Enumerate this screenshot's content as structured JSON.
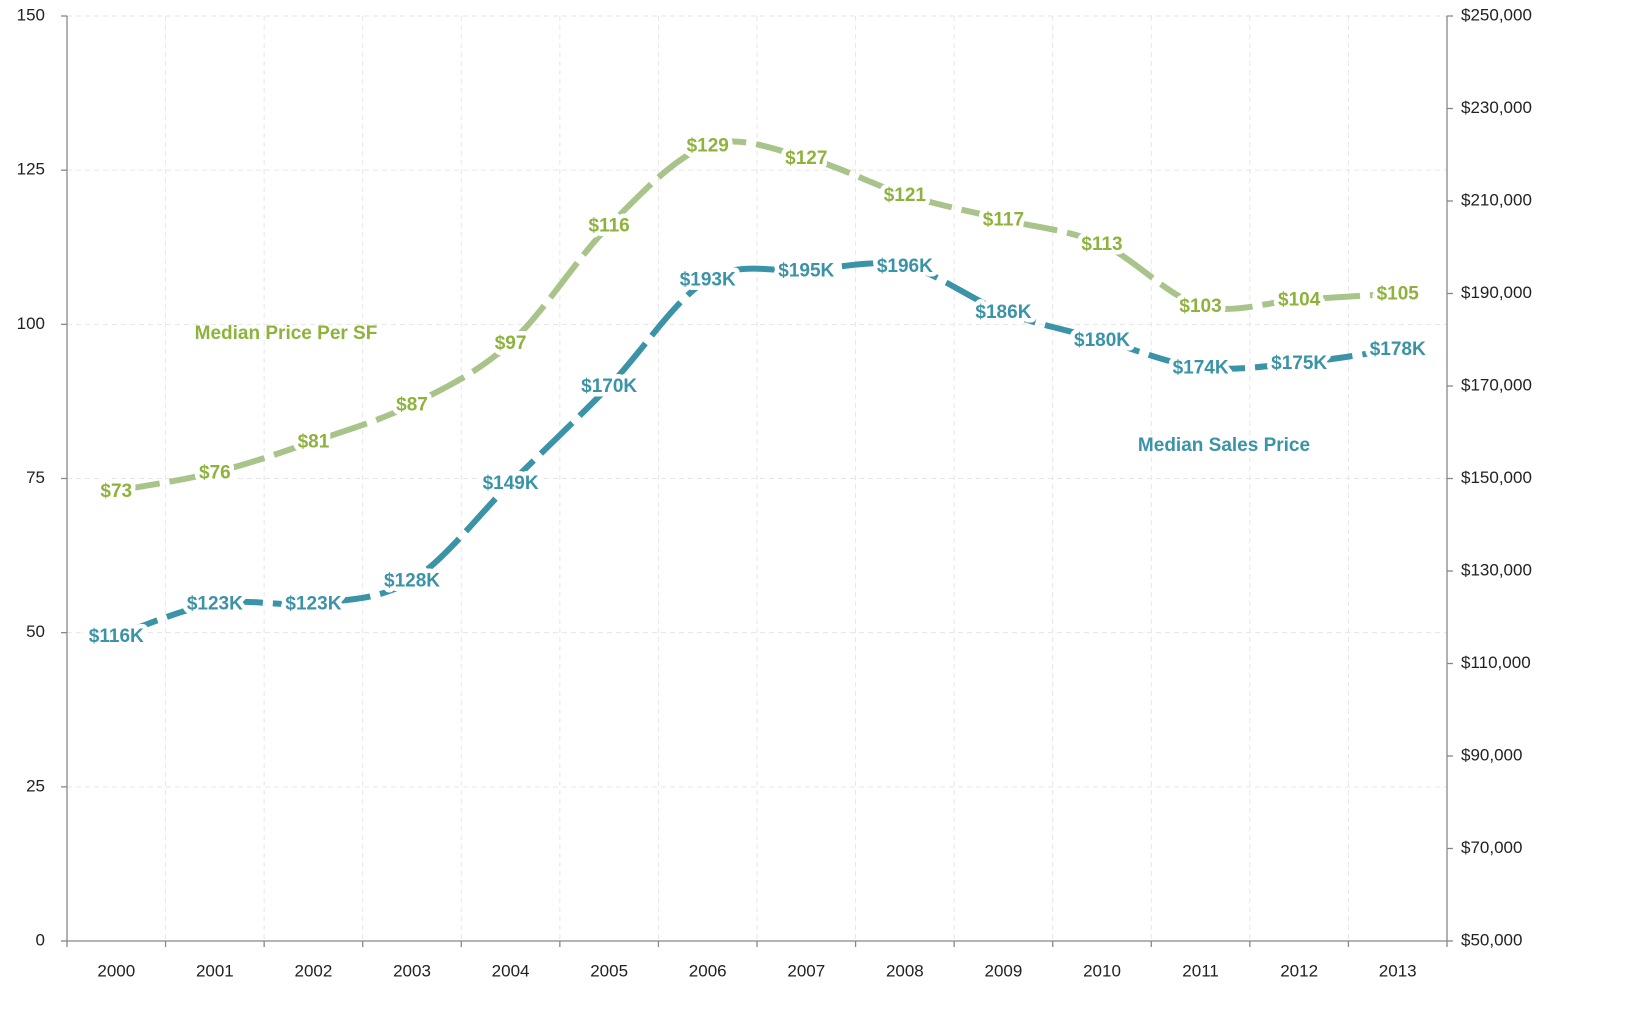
{
  "chart_data": {
    "type": "line",
    "categories": [
      "2000",
      "2001",
      "2002",
      "2003",
      "2004",
      "2005",
      "2006",
      "2007",
      "2008",
      "2009",
      "2010",
      "2011",
      "2012",
      "2013"
    ],
    "series": [
      {
        "name": "Median Price Per SF",
        "color": "#a9c48b",
        "label_color": "#8db33c",
        "values": [
          73,
          76,
          81,
          87,
          97,
          116,
          129,
          127,
          121,
          117,
          113,
          103,
          104,
          105
        ],
        "value_labels": [
          "$73",
          "$76",
          "$81",
          "$87",
          "$97",
          "$116",
          "$129",
          "$127",
          "$121",
          "$117",
          "$113",
          "$103",
          "$104",
          "$105"
        ]
      },
      {
        "name": "Median Sales Price",
        "color": "#3a93a6",
        "label_color": "#3a93a6",
        "axis": "y2",
        "values": [
          116000,
          123000,
          123000,
          128000,
          149000,
          170000,
          193000,
          195000,
          196000,
          186000,
          180000,
          174000,
          175000,
          178000
        ],
        "value_labels": [
          "$116K",
          "$123K",
          "$123K",
          "$128K",
          "$149K",
          "$170K",
          "$193K",
          "$195K",
          "$196K",
          "$186K",
          "$180K",
          "$174K",
          "$175K",
          "$178K"
        ]
      }
    ],
    "ylim": [
      0,
      150
    ],
    "yticks": [
      0,
      25,
      50,
      75,
      100,
      125,
      150
    ],
    "y2lim": [
      50000,
      250000
    ],
    "y2ticks": [
      {
        "value": 50000,
        "label": "$50,000"
      },
      {
        "value": 70000,
        "label": "$70,000"
      },
      {
        "value": 90000,
        "label": "$90,000"
      },
      {
        "value": 110000,
        "label": "$110,000"
      },
      {
        "value": 130000,
        "label": "$130,000"
      },
      {
        "value": 150000,
        "label": "$150,000"
      },
      {
        "value": 170000,
        "label": "$170,000"
      },
      {
        "value": 190000,
        "label": "$190,000"
      },
      {
        "value": 210000,
        "label": "$210,000"
      },
      {
        "value": 230000,
        "label": "$230,000"
      },
      {
        "value": 250000,
        "label": "$250,000"
      }
    ],
    "grid": true
  }
}
